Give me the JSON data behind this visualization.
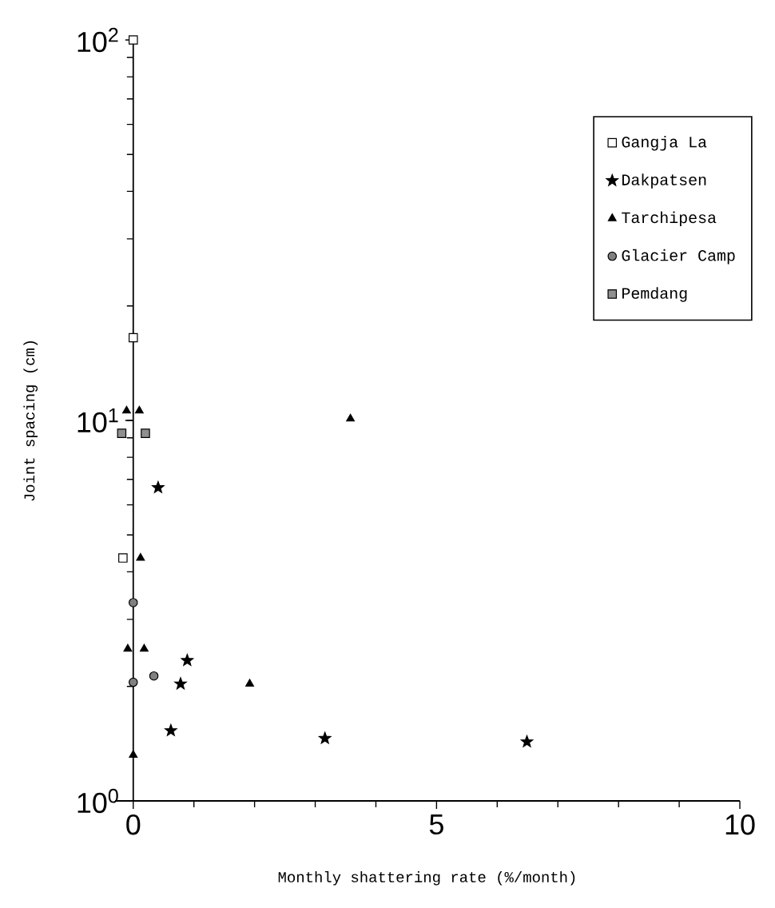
{
  "chart_data": {
    "type": "scatter",
    "xlabel": "Monthly shattering rate (%/month)",
    "ylabel": "Joint spacing (cm)",
    "log": "y",
    "legend": "top right",
    "xlim": [
      -0.3,
      10
    ],
    "xticks": [
      0,
      5,
      10
    ],
    "ylim": [
      1,
      100
    ],
    "yticks": [
      {
        "value": 1,
        "label": "10$^{0}$"
      },
      {
        "value": 10,
        "label": "10$^{1}$"
      },
      {
        "value": 100,
        "label": "10$^{2}$"
      }
    ],
    "series": [
      {
        "name": "Gangja La",
        "marker": "square",
        "color": "#ffffff",
        "x": [
          0,
          0,
          -0.17
        ],
        "values": [
          100,
          16.5,
          4.35
        ]
      },
      {
        "name": "Dakpatsen",
        "marker": "star",
        "color": "#000000",
        "x": [
          0.41,
          0.89,
          0.78,
          0.62,
          3.16,
          6.49
        ],
        "values": [
          6.66,
          2.34,
          2.03,
          1.53,
          1.46,
          1.43
        ]
      },
      {
        "name": "Tarchipesa",
        "marker": "triangle",
        "color": "#000000",
        "x": [
          -0.11,
          0.1,
          3.58,
          0.12,
          -0.09,
          0.18,
          1.92,
          0
        ],
        "values": [
          10.6,
          10.6,
          10.1,
          4.35,
          2.51,
          2.51,
          2.03,
          1.32
        ]
      },
      {
        "name": "Glacier Camp",
        "marker": "circle",
        "color": "#808080",
        "x": [
          0,
          0,
          0.34
        ],
        "values": [
          3.32,
          2.05,
          2.13
        ]
      },
      {
        "name": "Pemdang",
        "marker": "square",
        "color": "#909090",
        "x": [
          -0.19,
          0.2
        ],
        "values": [
          9.25,
          9.25
        ]
      }
    ]
  }
}
